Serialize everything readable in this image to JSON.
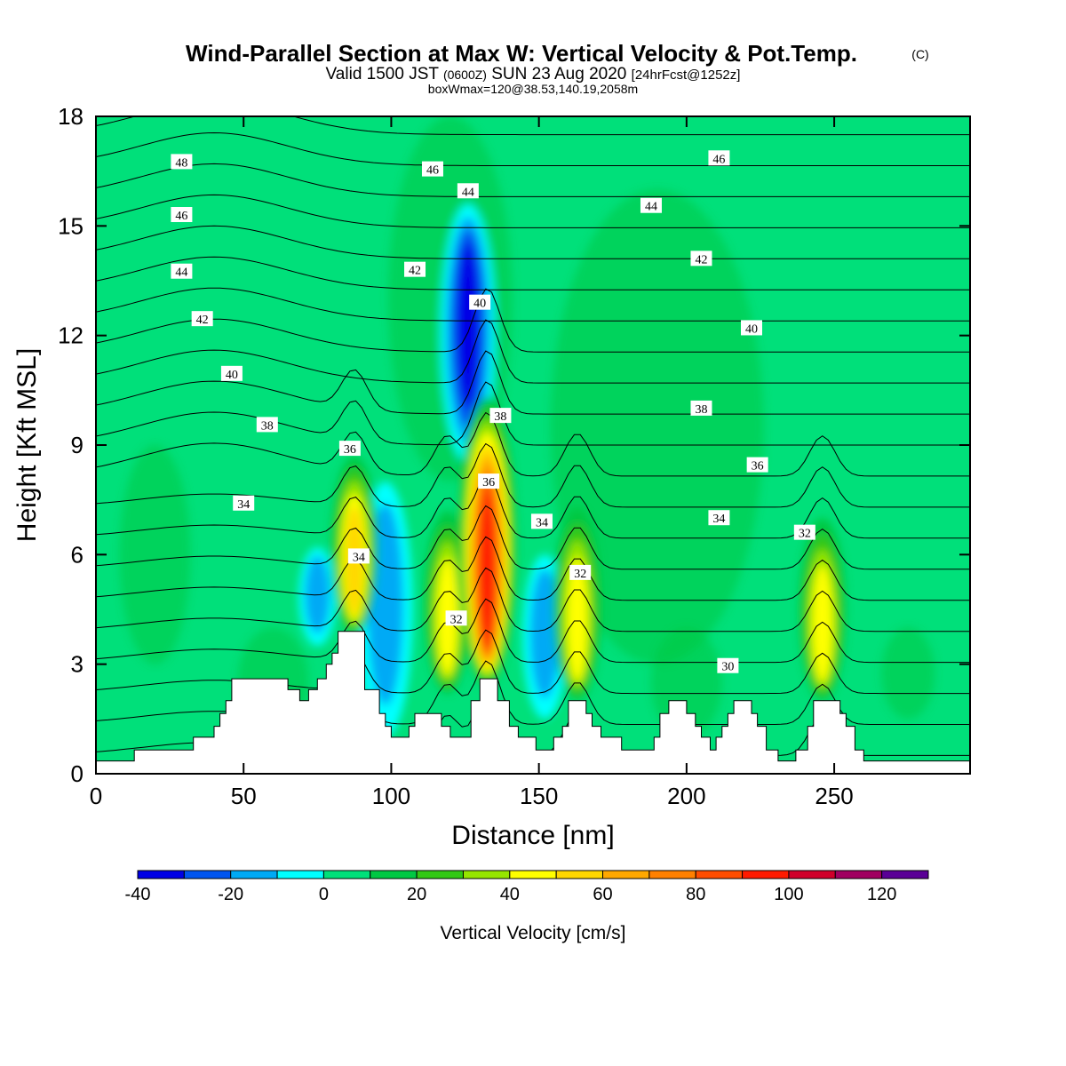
{
  "title": {
    "main": "Wind-Parallel Section at Max W: Vertical Velocity & Pot.Temp.",
    "mark": "(C)",
    "line2_pre": "Valid 1500 JST",
    "line2_utc": "(0600Z)",
    "line2_date": "SUN 23 Aug 2020",
    "line2_fcst": "[24hrFcst@1252z]",
    "line3": "boxWmax=120@38.53,140.19,2058m"
  },
  "chart_data": {
    "type": "heatmap",
    "xlabel": "Distance [nm]",
    "ylabel": "Height [Kft MSL]",
    "xlim": [
      0,
      296
    ],
    "ylim": [
      0,
      18
    ],
    "x_ticks": [
      "0",
      "50",
      "100",
      "150",
      "200",
      "250"
    ],
    "y_ticks": [
      "0",
      "3",
      "6",
      "9",
      "12",
      "15",
      "18"
    ],
    "colorbar": {
      "label": "Vertical Velocity [cm/s]",
      "tick_labels": [
        "-40",
        "-20",
        "0",
        "20",
        "40",
        "60",
        "80",
        "100",
        "120"
      ],
      "bounds": [
        -40,
        -30,
        -20,
        -10,
        0,
        10,
        20,
        30,
        40,
        50,
        60,
        70,
        80,
        90,
        100,
        110,
        120,
        130
      ],
      "colors": [
        "#0000e6",
        "#0055f0",
        "#00aaf5",
        "#00ffff",
        "#00e07a",
        "#00c843",
        "#32c814",
        "#96e600",
        "#ffff00",
        "#ffd700",
        "#ffa800",
        "#ff8000",
        "#ff4d00",
        "#ff1a00",
        "#d0002a",
        "#a00060",
        "#5a0096"
      ]
    },
    "background_w": 5,
    "updrafts": [
      {
        "x": 87.5,
        "z_bottom": 3.8,
        "z_top": 8.7,
        "w_max": 55
      },
      {
        "x": 119,
        "z_bottom": 2.2,
        "z_top": 7.2,
        "w_max": 45
      },
      {
        "x": 132.5,
        "z_bottom": 2.4,
        "z_top": 10.3,
        "w_max": 100
      },
      {
        "x": 163,
        "z_bottom": 2.0,
        "z_top": 7.3,
        "w_max": 45
      },
      {
        "x": 246,
        "z_bottom": 2.0,
        "z_top": 7.0,
        "w_max": 50
      }
    ],
    "downdrafts": [
      {
        "x": 126,
        "z_bottom": 8.5,
        "z_top": 15.6,
        "w_min": -40
      },
      {
        "x": 98,
        "z_bottom": 1.0,
        "z_top": 8.0,
        "w_min": -20
      },
      {
        "x": 152,
        "z_bottom": 1.5,
        "z_top": 6.0,
        "w_min": -15
      },
      {
        "x": 75,
        "z_bottom": 3.5,
        "z_top": 6.2,
        "w_min": -15
      }
    ],
    "theta_isentropes": {
      "units": "C",
      "levels": [
        29,
        30,
        31,
        32,
        33,
        34,
        35,
        36,
        37,
        38,
        39,
        40,
        41,
        42,
        43,
        44,
        45,
        46,
        47,
        48,
        49
      ],
      "labels": [
        {
          "text": "48",
          "x": 29,
          "y": 16.75
        },
        {
          "text": "46",
          "x": 29,
          "y": 15.3
        },
        {
          "text": "44",
          "x": 29,
          "y": 13.75
        },
        {
          "text": "42",
          "x": 36,
          "y": 12.45
        },
        {
          "text": "40",
          "x": 46,
          "y": 10.95
        },
        {
          "text": "38",
          "x": 58,
          "y": 9.55
        },
        {
          "text": "36",
          "x": 86,
          "y": 8.9
        },
        {
          "text": "34",
          "x": 50,
          "y": 7.4
        },
        {
          "text": "34",
          "x": 89,
          "y": 5.95
        },
        {
          "text": "46",
          "x": 114,
          "y": 16.55
        },
        {
          "text": "44",
          "x": 126,
          "y": 15.95
        },
        {
          "text": "42",
          "x": 108,
          "y": 13.8
        },
        {
          "text": "40",
          "x": 130,
          "y": 12.9
        },
        {
          "text": "38",
          "x": 137,
          "y": 9.8
        },
        {
          "text": "36",
          "x": 133,
          "y": 8.0
        },
        {
          "text": "34",
          "x": 151,
          "y": 6.9
        },
        {
          "text": "32",
          "x": 122,
          "y": 4.25
        },
        {
          "text": "32",
          "x": 164,
          "y": 5.5
        },
        {
          "text": "46",
          "x": 211,
          "y": 16.85
        },
        {
          "text": "44",
          "x": 188,
          "y": 15.55
        },
        {
          "text": "42",
          "x": 205,
          "y": 14.1
        },
        {
          "text": "40",
          "x": 222,
          "y": 12.2
        },
        {
          "text": "38",
          "x": 205,
          "y": 10.0
        },
        {
          "text": "36",
          "x": 224,
          "y": 8.45
        },
        {
          "text": "34",
          "x": 211,
          "y": 7.0
        },
        {
          "text": "32",
          "x": 240,
          "y": 6.6
        },
        {
          "text": "30",
          "x": 214,
          "y": 2.95
        }
      ]
    },
    "terrain": [
      [
        0,
        0.35
      ],
      [
        13,
        0.35
      ],
      [
        13,
        0.65
      ],
      [
        33,
        0.65
      ],
      [
        33,
        1.0
      ],
      [
        40,
        1.0
      ],
      [
        40,
        1.3
      ],
      [
        42,
        1.3
      ],
      [
        42,
        1.65
      ],
      [
        44,
        1.65
      ],
      [
        44,
        2.0
      ],
      [
        46,
        2.0
      ],
      [
        46,
        2.6
      ],
      [
        65,
        2.6
      ],
      [
        65,
        2.3
      ],
      [
        69,
        2.3
      ],
      [
        69,
        2.0
      ],
      [
        72,
        2.0
      ],
      [
        72,
        2.3
      ],
      [
        75,
        2.3
      ],
      [
        75,
        2.6
      ],
      [
        78,
        2.6
      ],
      [
        78,
        3.0
      ],
      [
        80,
        3.0
      ],
      [
        80,
        3.3
      ],
      [
        82,
        3.3
      ],
      [
        82,
        3.9
      ],
      [
        91,
        3.9
      ],
      [
        91,
        2.3
      ],
      [
        96,
        2.3
      ],
      [
        96,
        1.65
      ],
      [
        98,
        1.65
      ],
      [
        98,
        1.3
      ],
      [
        100,
        1.3
      ],
      [
        100,
        1.0
      ],
      [
        106,
        1.0
      ],
      [
        106,
        1.3
      ],
      [
        108,
        1.3
      ],
      [
        108,
        1.65
      ],
      [
        117,
        1.65
      ],
      [
        117,
        1.3
      ],
      [
        120,
        1.3
      ],
      [
        120,
        1.0
      ],
      [
        127,
        1.0
      ],
      [
        127,
        2.0
      ],
      [
        130,
        2.0
      ],
      [
        130,
        2.6
      ],
      [
        136,
        2.6
      ],
      [
        136,
        2.0
      ],
      [
        140,
        2.0
      ],
      [
        140,
        1.3
      ],
      [
        143,
        1.3
      ],
      [
        143,
        1.0
      ],
      [
        149,
        1.0
      ],
      [
        149,
        0.65
      ],
      [
        155,
        0.65
      ],
      [
        155,
        1.0
      ],
      [
        158,
        1.0
      ],
      [
        158,
        1.3
      ],
      [
        160,
        1.3
      ],
      [
        160,
        2.0
      ],
      [
        166,
        2.0
      ],
      [
        166,
        1.65
      ],
      [
        168,
        1.65
      ],
      [
        168,
        1.3
      ],
      [
        171,
        1.3
      ],
      [
        171,
        1.0
      ],
      [
        178,
        1.0
      ],
      [
        178,
        0.65
      ],
      [
        189,
        0.65
      ],
      [
        189,
        1.0
      ],
      [
        191,
        1.0
      ],
      [
        191,
        1.65
      ],
      [
        194,
        1.65
      ],
      [
        194,
        2.0
      ],
      [
        200,
        2.0
      ],
      [
        200,
        1.65
      ],
      [
        203,
        1.65
      ],
      [
        203,
        1.3
      ],
      [
        205,
        1.3
      ],
      [
        205,
        1.0
      ],
      [
        208,
        1.0
      ],
      [
        208,
        0.65
      ],
      [
        210,
        0.65
      ],
      [
        210,
        1.0
      ],
      [
        212,
        1.0
      ],
      [
        212,
        1.3
      ],
      [
        214,
        1.3
      ],
      [
        214,
        1.65
      ],
      [
        216,
        1.65
      ],
      [
        216,
        2.0
      ],
      [
        222,
        2.0
      ],
      [
        222,
        1.65
      ],
      [
        224,
        1.65
      ],
      [
        224,
        1.3
      ],
      [
        227,
        1.3
      ],
      [
        227,
        0.65
      ],
      [
        231,
        0.65
      ],
      [
        231,
        0.35
      ],
      [
        237,
        0.35
      ],
      [
        237,
        0.65
      ],
      [
        241,
        0.65
      ],
      [
        241,
        1.3
      ],
      [
        243,
        1.3
      ],
      [
        243,
        2.0
      ],
      [
        252,
        2.0
      ],
      [
        252,
        1.65
      ],
      [
        254,
        1.65
      ],
      [
        254,
        1.3
      ],
      [
        257,
        1.3
      ],
      [
        257,
        0.65
      ],
      [
        260,
        0.65
      ],
      [
        260,
        0.35
      ],
      [
        296,
        0.35
      ]
    ]
  }
}
